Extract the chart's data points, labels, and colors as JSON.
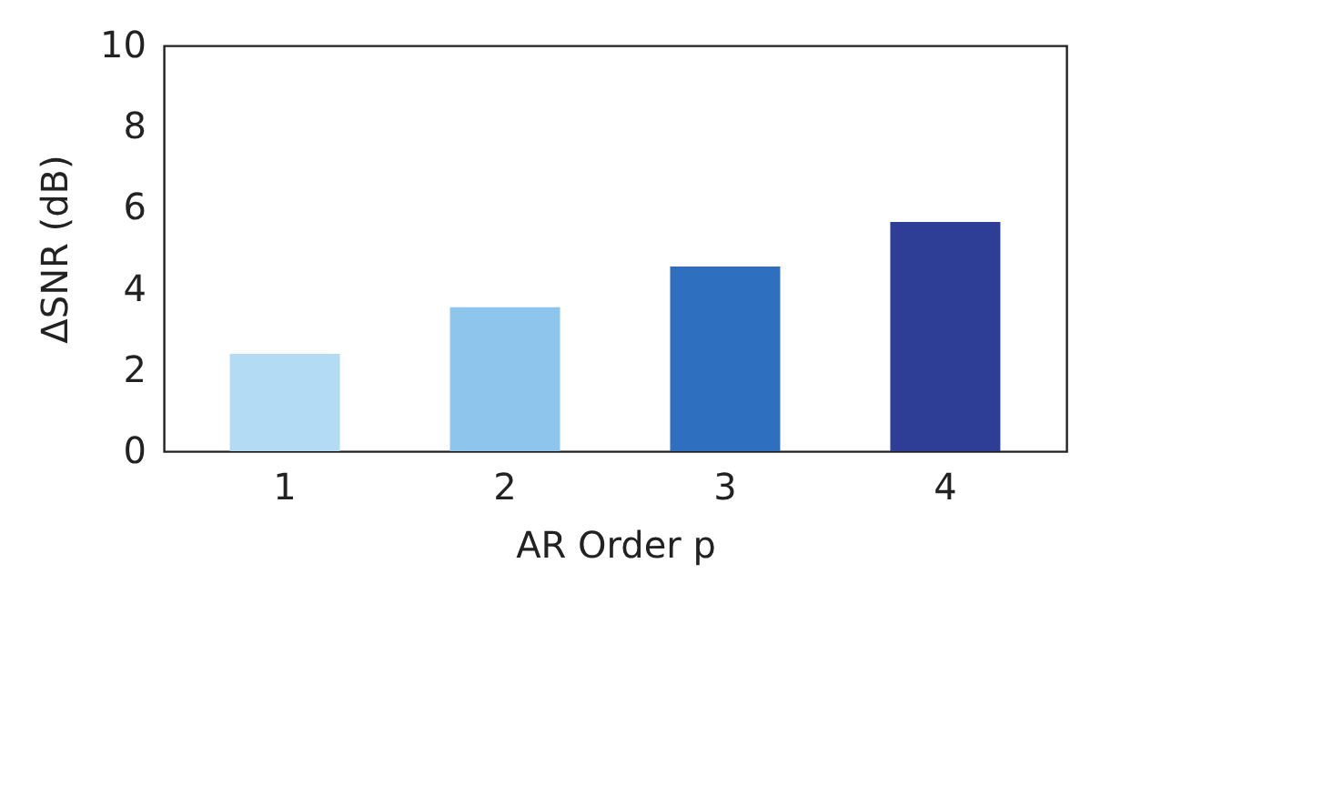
{
  "chart_data": {
    "type": "bar",
    "xlabel": "AR Order p",
    "ylabel": "ΔSNR (dB)",
    "categories": [
      "1",
      "2",
      "3",
      "4"
    ],
    "values": [
      2.4,
      3.55,
      4.55,
      5.65
    ],
    "colors": [
      "#b3dcf4",
      "#8ec5ec",
      "#2f6fbf",
      "#2e3e96"
    ],
    "ylim": [
      0,
      10
    ],
    "yticks": [
      0,
      2,
      4,
      6,
      8,
      10
    ],
    "grid": false,
    "legend": false
  }
}
